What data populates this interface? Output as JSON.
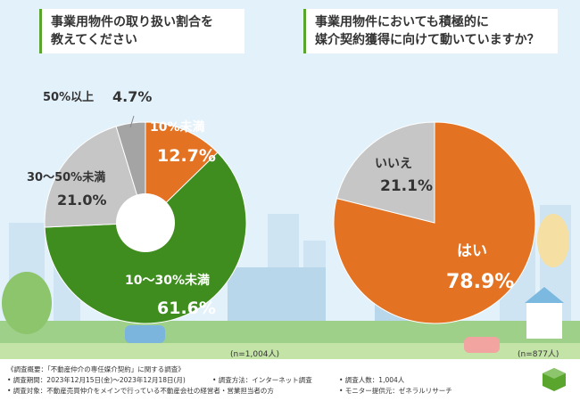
{
  "colors": {
    "green": "#3f8d1f",
    "orange": "#e37222",
    "gray": "#c6c6c6",
    "darkgray": "#a4a4a4",
    "white": "#ffffff"
  },
  "chart_data": [
    {
      "type": "pie",
      "title": "事業用物件の取り扱い割合を教えてください",
      "title_lines": [
        "事業用物件の取り扱い割合を",
        "教えてください"
      ],
      "n": "(n=1,004人)",
      "slices": [
        {
          "label": "10%未満",
          "value_text": "12.7%",
          "value": 12.7,
          "color": "#e37222"
        },
        {
          "label": "10〜30%未満",
          "value_text": "61.6%",
          "value": 61.6,
          "color": "#3f8d1f"
        },
        {
          "label": "30〜50%未満",
          "value_text": "21.0%",
          "value": 21.0,
          "color": "#c6c6c6"
        },
        {
          "label": "50%以上",
          "value_text": "4.7%",
          "value": 4.7,
          "color": "#a4a4a4"
        }
      ]
    },
    {
      "type": "pie",
      "title": "事業用物件においても積極的に媒介契約獲得に向けて動いていますか？",
      "title_lines": [
        "事業用物件においても積極的に",
        "媒介契約獲得に向けて動いていますか？"
      ],
      "n": "(n=877人)",
      "slices": [
        {
          "label": "はい",
          "value_text": "78.9%",
          "value": 78.9,
          "color": "#e37222"
        },
        {
          "label": "いいえ",
          "value_text": "21.1%",
          "value": 21.1,
          "color": "#c6c6c6"
        }
      ]
    }
  ],
  "footer": {
    "overview": "《調査概要：「不動産仲介の専任媒介契約」に関する調査》",
    "period": "• 調査期間：2023年12月15日(金)〜2023年12月18日(月)",
    "method": "• 調査方法：インターネット調査",
    "count": "• 調査人数：1,004人",
    "target": "• 調査対象：不動産売買仲介をメインで行っている不動産会社の経営者・営業担当者の方",
    "provider": "• モニター提供元：ゼネラルリサーチ"
  }
}
